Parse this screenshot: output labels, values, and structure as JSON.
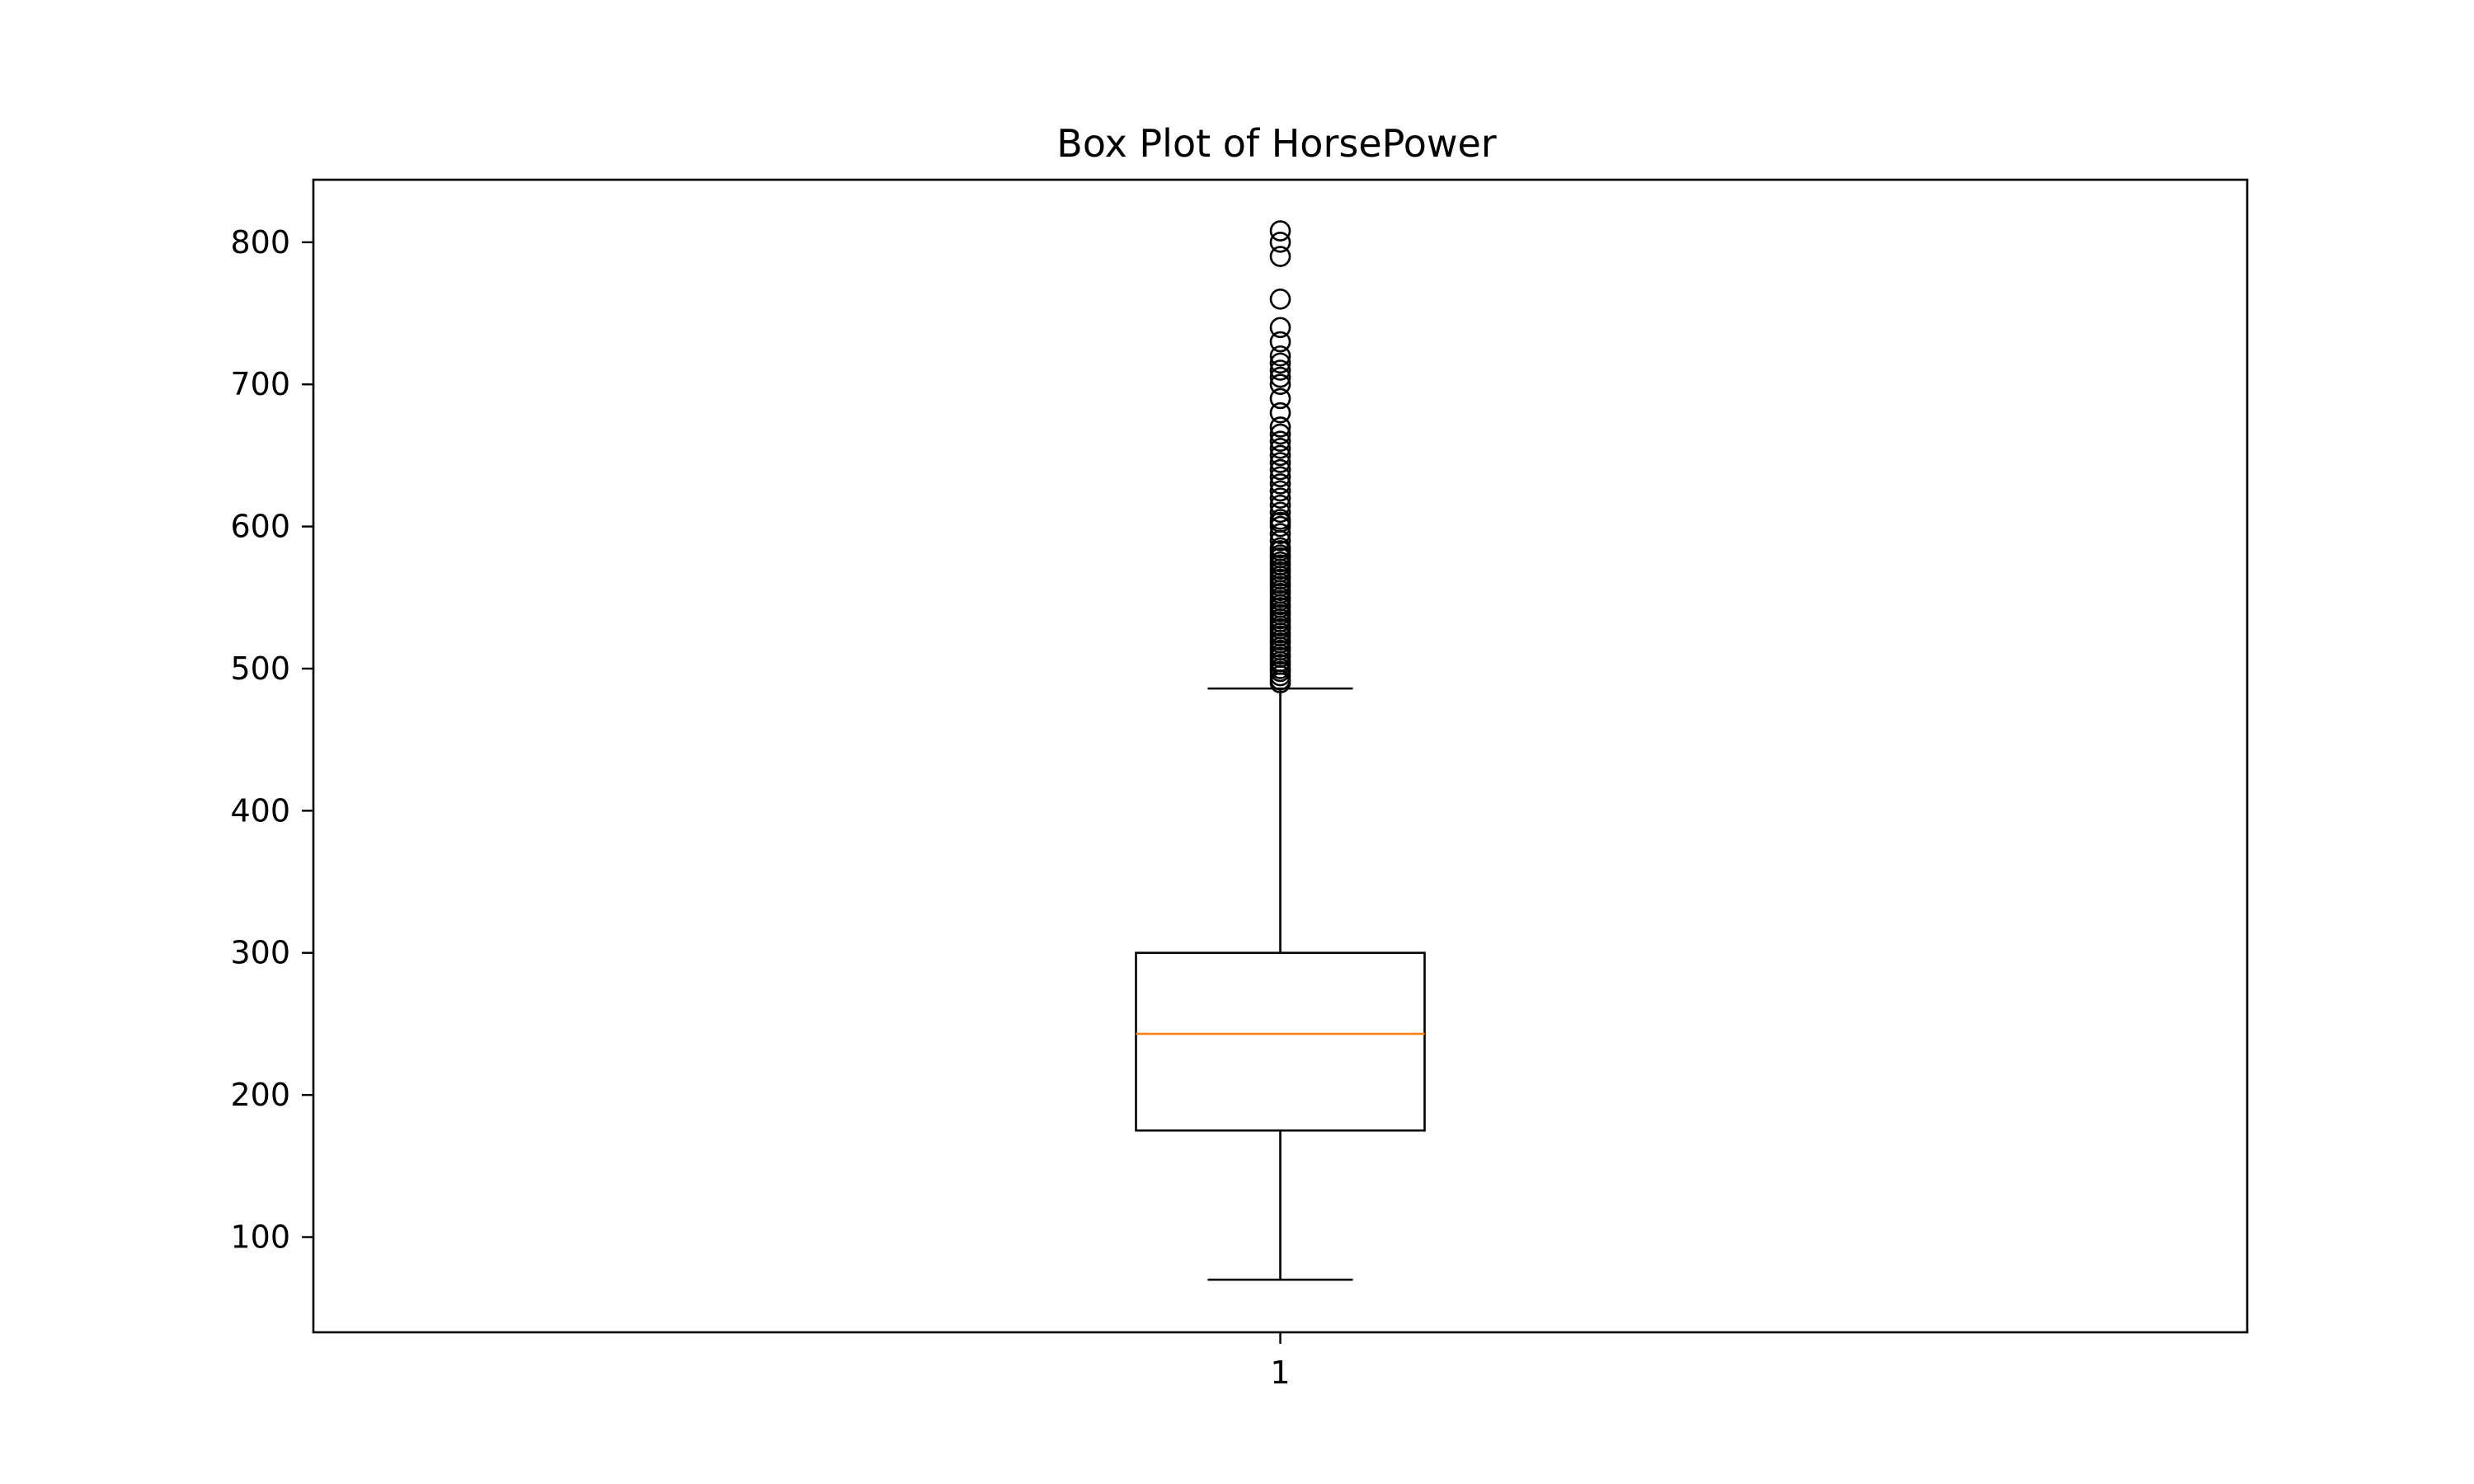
{
  "chart_data": {
    "type": "box",
    "title": "Box Plot of HorsePower",
    "xlabel": "",
    "ylabel": "",
    "categories": [
      "1"
    ],
    "ylim": [
      33,
      844
    ],
    "yticks": [
      100,
      200,
      300,
      400,
      500,
      600,
      700,
      800
    ],
    "grid": false,
    "legend": "none",
    "boxes": [
      {
        "category": "1",
        "whisker_low": 70,
        "q1": 175,
        "median": 243,
        "q3": 300,
        "whisker_high": 486,
        "outliers": [
          490,
          492,
          495,
          498,
          500,
          503,
          505,
          508,
          510,
          513,
          515,
          518,
          520,
          523,
          525,
          528,
          530,
          533,
          535,
          538,
          540,
          543,
          545,
          548,
          550,
          553,
          555,
          558,
          560,
          563,
          565,
          568,
          570,
          573,
          575,
          578,
          580,
          583,
          585,
          590,
          595,
          600,
          603,
          605,
          610,
          615,
          620,
          625,
          630,
          635,
          640,
          645,
          650,
          655,
          660,
          665,
          670,
          680,
          690,
          700,
          705,
          710,
          715,
          720,
          730,
          740,
          760,
          790,
          800,
          808
        ]
      }
    ],
    "colors": {
      "box": "#000000",
      "median": "#ff7f0e",
      "outlier": "#000000"
    }
  }
}
